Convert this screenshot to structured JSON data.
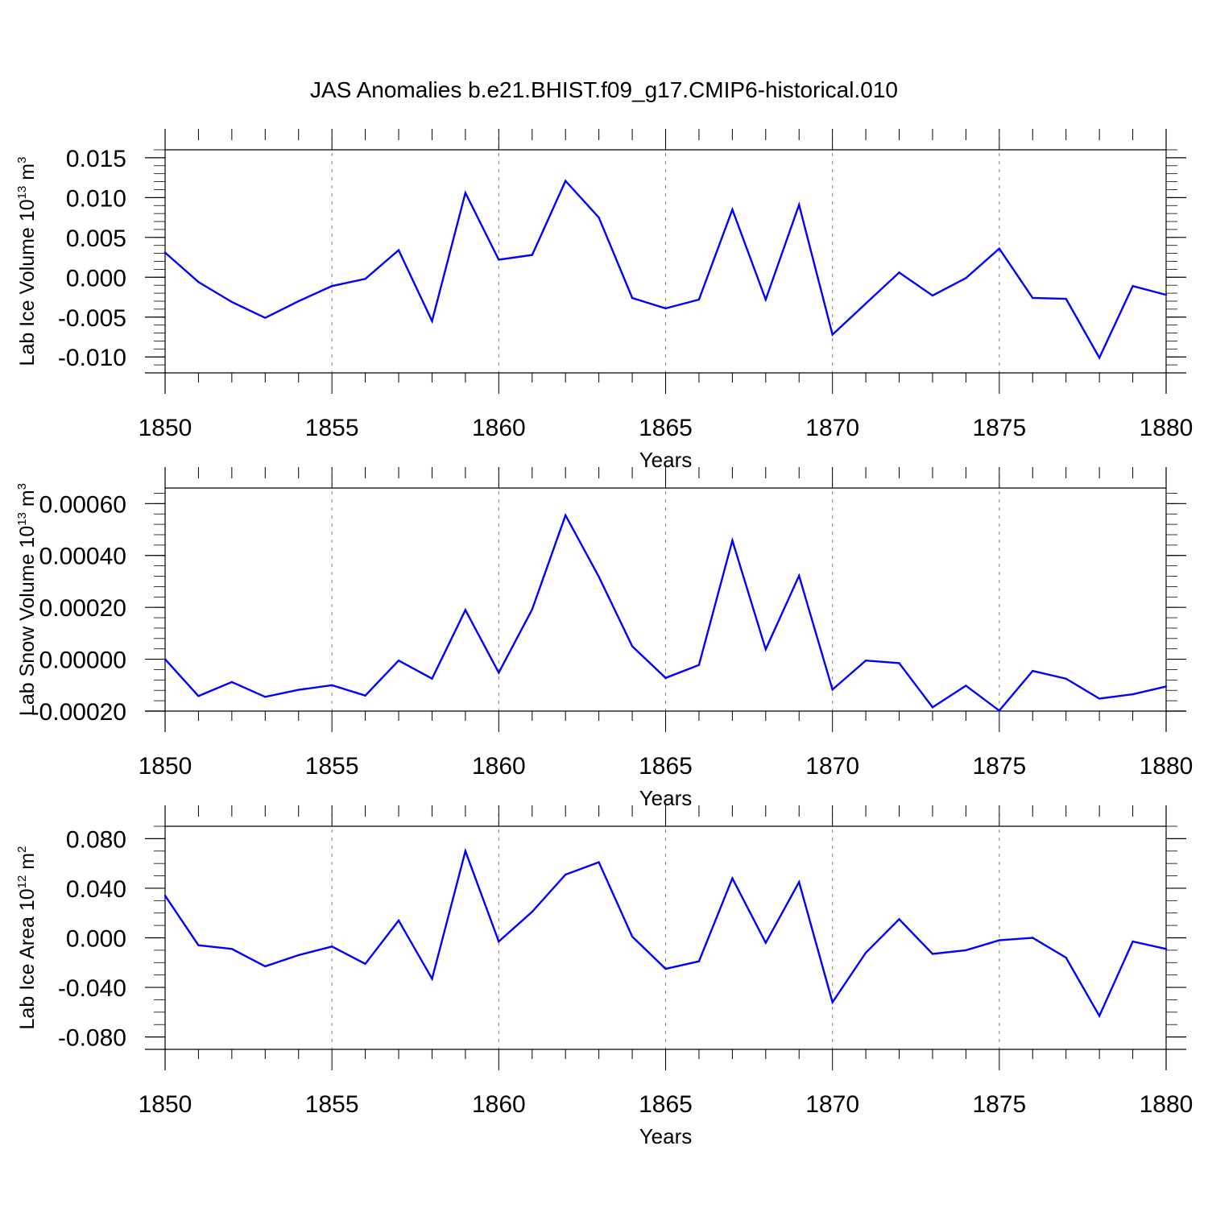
{
  "title": "JAS Anomalies b.e21.BHIST.f09_g17.CMIP6-historical.010",
  "colors": {
    "series": "#0000ff",
    "axis": "#000000",
    "grid": "#808080"
  },
  "chart_data": [
    {
      "type": "line",
      "ylabel": "Lab Ice Volume 10",
      "ylabel_exp": "13",
      "ylabel_unit": "m",
      "ylabel_unit_exp": "3",
      "xlabel": "Years",
      "xlim": [
        1850,
        1880
      ],
      "ylim": [
        -0.012,
        0.016
      ],
      "xticks": [
        "1850",
        "1855",
        "1860",
        "1865",
        "1870",
        "1875",
        "1880"
      ],
      "yticks": [
        {
          "value": 0.015,
          "label": "0.015"
        },
        {
          "value": 0.01,
          "label": "0.010"
        },
        {
          "value": 0.005,
          "label": "0.005"
        },
        {
          "value": 0.0,
          "label": "0.000"
        },
        {
          "value": -0.005,
          "label": "-0.005"
        },
        {
          "value": -0.01,
          "label": "-0.010"
        }
      ],
      "yminor_step": 0.001,
      "x": [
        1850,
        1851,
        1852,
        1853,
        1854,
        1855,
        1856,
        1857,
        1858,
        1859,
        1860,
        1861,
        1862,
        1863,
        1864,
        1865,
        1866,
        1867,
        1868,
        1869,
        1870,
        1871,
        1872,
        1873,
        1874,
        1875,
        1876,
        1877,
        1878,
        1879,
        1880
      ],
      "values": [
        0.0031,
        -0.0006,
        -0.0031,
        -0.0051,
        -0.003,
        -0.0011,
        -0.0002,
        0.0034,
        -0.0055,
        0.0106,
        0.0022,
        0.0028,
        0.0121,
        0.0075,
        -0.0026,
        -0.0039,
        -0.0028,
        0.0085,
        -0.0028,
        0.0091,
        -0.0072,
        -0.0033,
        0.0006,
        -0.0023,
        -0.0001,
        0.0036,
        -0.0026,
        -0.0027,
        -0.0101,
        -0.0011,
        -0.0022
      ]
    },
    {
      "type": "line",
      "ylabel": "Lab Snow Volume 10",
      "ylabel_exp": "13",
      "ylabel_unit": "m",
      "ylabel_unit_exp": "3",
      "xlabel": "Years",
      "xlim": [
        1850,
        1880
      ],
      "ylim": [
        -0.0002,
        0.00066
      ],
      "xticks": [
        "1850",
        "1855",
        "1860",
        "1865",
        "1870",
        "1875",
        "1880"
      ],
      "yticks": [
        {
          "value": 0.0006,
          "label": "0.00060"
        },
        {
          "value": 0.0004,
          "label": "0.00040"
        },
        {
          "value": 0.0002,
          "label": "0.00020"
        },
        {
          "value": 0.0,
          "label": "0.00000"
        },
        {
          "value": -0.0002,
          "label": "-0.00020"
        }
      ],
      "yminor_step": 4e-05,
      "x": [
        1850,
        1851,
        1852,
        1853,
        1854,
        1855,
        1856,
        1857,
        1858,
        1859,
        1860,
        1861,
        1862,
        1863,
        1864,
        1865,
        1866,
        1867,
        1868,
        1869,
        1870,
        1871,
        1872,
        1873,
        1874,
        1875,
        1876,
        1877,
        1878,
        1879,
        1880
      ],
      "values": [
        0.0,
        -0.000142,
        -8.8e-05,
        -0.000145,
        -0.000118,
        -0.0001,
        -0.00014,
        -5e-06,
        -7.5e-05,
        0.00019,
        -5.2e-05,
        0.000192,
        0.000555,
        0.000318,
        5e-05,
        -7.2e-05,
        -2.2e-05,
        0.000458,
        3.8e-05,
        0.000322,
        -0.000117,
        -5e-06,
        -1.5e-05,
        -0.000185,
        -0.000102,
        -0.000198,
        -4.5e-05,
        -7.5e-05,
        -0.000152,
        -0.000135,
        -0.000105
      ]
    },
    {
      "type": "line",
      "ylabel": "Lab Ice Area 10",
      "ylabel_exp": "12",
      "ylabel_unit": "m",
      "ylabel_unit_exp": "2",
      "xlabel": "Years",
      "xlim": [
        1850,
        1880
      ],
      "ylim": [
        -0.09,
        0.09
      ],
      "xticks": [
        "1850",
        "1855",
        "1860",
        "1865",
        "1870",
        "1875",
        "1880"
      ],
      "yticks": [
        {
          "value": 0.08,
          "label": "0.080"
        },
        {
          "value": 0.04,
          "label": "0.040"
        },
        {
          "value": 0.0,
          "label": "0.000"
        },
        {
          "value": -0.04,
          "label": "-0.040"
        },
        {
          "value": -0.08,
          "label": "-0.080"
        }
      ],
      "yminor_step": 0.01,
      "x": [
        1850,
        1851,
        1852,
        1853,
        1854,
        1855,
        1856,
        1857,
        1858,
        1859,
        1860,
        1861,
        1862,
        1863,
        1864,
        1865,
        1866,
        1867,
        1868,
        1869,
        1870,
        1871,
        1872,
        1873,
        1874,
        1875,
        1876,
        1877,
        1878,
        1879,
        1880
      ],
      "values": [
        0.034,
        -0.006,
        -0.009,
        -0.023,
        -0.014,
        -0.007,
        -0.021,
        0.014,
        -0.033,
        0.07,
        -0.003,
        0.021,
        0.051,
        0.061,
        0.001,
        -0.025,
        -0.019,
        0.048,
        -0.004,
        0.045,
        -0.052,
        -0.012,
        0.015,
        -0.013,
        -0.01,
        -0.002,
        0.0,
        -0.016,
        -0.063,
        -0.003,
        -0.009
      ]
    }
  ]
}
